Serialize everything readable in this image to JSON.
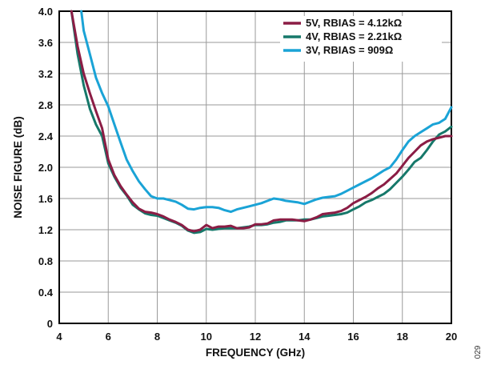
{
  "chart_data": {
    "type": "line",
    "xlabel": "FREQUENCY (GHz)",
    "ylabel": "NOISE FIGURE (dB)",
    "xlim": [
      4,
      20
    ],
    "ylim": [
      0,
      4.0
    ],
    "xticks": [
      "4",
      "6",
      "8",
      "10",
      "12",
      "14",
      "16",
      "18",
      "20"
    ],
    "yticks": [
      "0",
      "0.4",
      "0.8",
      "1.2",
      "1.6",
      "2.0",
      "2.4",
      "2.8",
      "3.2",
      "3.6",
      "4.0"
    ],
    "grid": true,
    "legend_position": "top-right",
    "figure_code": "029",
    "series": [
      {
        "name": "5V, RBIAS = 4.12kΩ",
        "color": "#8b1d45",
        "x": [
          4.5,
          4.75,
          5.0,
          5.25,
          5.5,
          5.75,
          6.0,
          6.25,
          6.5,
          6.75,
          7.0,
          7.25,
          7.5,
          7.75,
          8.0,
          8.25,
          8.5,
          8.75,
          9.0,
          9.25,
          9.5,
          9.75,
          10.0,
          10.25,
          10.5,
          10.75,
          11.0,
          11.25,
          11.5,
          11.75,
          12.0,
          12.25,
          12.5,
          12.75,
          13.0,
          13.25,
          13.5,
          13.75,
          14.0,
          14.25,
          14.5,
          14.75,
          15.0,
          15.25,
          15.5,
          15.75,
          16.0,
          16.25,
          16.5,
          16.75,
          17.0,
          17.25,
          17.5,
          17.75,
          18.0,
          18.25,
          18.5,
          18.75,
          19.0,
          19.25,
          19.5,
          19.75,
          20.0
        ],
        "y": [
          4.0,
          3.55,
          3.2,
          2.95,
          2.72,
          2.5,
          2.1,
          1.9,
          1.76,
          1.65,
          1.55,
          1.47,
          1.43,
          1.42,
          1.4,
          1.37,
          1.33,
          1.3,
          1.26,
          1.2,
          1.18,
          1.2,
          1.26,
          1.22,
          1.24,
          1.24,
          1.25,
          1.22,
          1.22,
          1.23,
          1.27,
          1.27,
          1.28,
          1.32,
          1.33,
          1.33,
          1.33,
          1.32,
          1.31,
          1.33,
          1.36,
          1.4,
          1.41,
          1.42,
          1.44,
          1.48,
          1.54,
          1.58,
          1.62,
          1.67,
          1.73,
          1.78,
          1.85,
          1.92,
          2.02,
          2.12,
          2.2,
          2.28,
          2.33,
          2.36,
          2.38,
          2.4,
          2.4
        ]
      },
      {
        "name": "4V, RBIAS = 2.21kΩ",
        "color": "#16786a",
        "x": [
          4.5,
          4.75,
          5.0,
          5.25,
          5.5,
          5.75,
          6.0,
          6.25,
          6.5,
          6.75,
          7.0,
          7.25,
          7.5,
          7.75,
          8.0,
          8.25,
          8.5,
          8.75,
          9.0,
          9.25,
          9.5,
          9.75,
          10.0,
          10.25,
          10.5,
          10.75,
          11.0,
          11.25,
          11.5,
          11.75,
          12.0,
          12.25,
          12.5,
          12.75,
          13.0,
          13.25,
          13.5,
          13.75,
          14.0,
          14.25,
          14.5,
          14.75,
          15.0,
          15.25,
          15.5,
          15.75,
          16.0,
          16.25,
          16.5,
          16.75,
          17.0,
          17.25,
          17.5,
          17.75,
          18.0,
          18.25,
          18.5,
          18.75,
          19.0,
          19.25,
          19.5,
          19.75,
          20.0
        ],
        "y": [
          4.0,
          3.45,
          3.05,
          2.75,
          2.55,
          2.4,
          2.05,
          1.88,
          1.74,
          1.64,
          1.52,
          1.46,
          1.41,
          1.39,
          1.38,
          1.35,
          1.32,
          1.29,
          1.25,
          1.19,
          1.16,
          1.17,
          1.21,
          1.2,
          1.21,
          1.22,
          1.22,
          1.22,
          1.23,
          1.24,
          1.26,
          1.26,
          1.27,
          1.29,
          1.3,
          1.32,
          1.32,
          1.32,
          1.33,
          1.33,
          1.35,
          1.37,
          1.38,
          1.39,
          1.4,
          1.42,
          1.46,
          1.5,
          1.55,
          1.58,
          1.62,
          1.66,
          1.72,
          1.8,
          1.88,
          1.97,
          2.07,
          2.12,
          2.22,
          2.33,
          2.42,
          2.46,
          2.52
        ]
      },
      {
        "name": "3V, RBIAS = 909Ω",
        "color": "#1aa3d6",
        "x": [
          4.9,
          5.0,
          5.25,
          5.5,
          5.75,
          6.0,
          6.25,
          6.5,
          6.75,
          7.0,
          7.25,
          7.5,
          7.75,
          8.0,
          8.25,
          8.5,
          8.75,
          9.0,
          9.25,
          9.5,
          9.75,
          10.0,
          10.25,
          10.5,
          10.75,
          11.0,
          11.25,
          11.5,
          11.75,
          12.0,
          12.25,
          12.5,
          12.75,
          13.0,
          13.25,
          13.5,
          13.75,
          14.0,
          14.25,
          14.5,
          14.75,
          15.0,
          15.25,
          15.5,
          15.75,
          16.0,
          16.25,
          16.5,
          16.75,
          17.0,
          17.25,
          17.5,
          17.75,
          18.0,
          18.25,
          18.5,
          18.75,
          19.0,
          19.25,
          19.5,
          19.75,
          20.0
        ],
        "y": [
          4.0,
          3.75,
          3.45,
          3.15,
          2.95,
          2.78,
          2.55,
          2.32,
          2.1,
          1.95,
          1.82,
          1.72,
          1.63,
          1.6,
          1.6,
          1.58,
          1.56,
          1.52,
          1.47,
          1.46,
          1.48,
          1.49,
          1.49,
          1.48,
          1.45,
          1.43,
          1.46,
          1.48,
          1.5,
          1.52,
          1.54,
          1.57,
          1.6,
          1.59,
          1.57,
          1.56,
          1.55,
          1.53,
          1.56,
          1.59,
          1.61,
          1.62,
          1.63,
          1.66,
          1.7,
          1.74,
          1.78,
          1.82,
          1.86,
          1.91,
          1.96,
          2.0,
          2.1,
          2.22,
          2.33,
          2.4,
          2.45,
          2.5,
          2.55,
          2.57,
          2.62,
          2.77
        ]
      }
    ]
  }
}
